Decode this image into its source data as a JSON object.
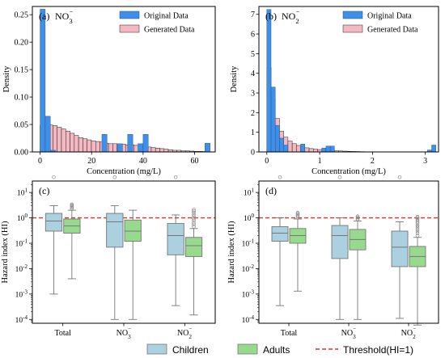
{
  "chart_data": [
    {
      "type": "bar",
      "panel": "(a)",
      "title": "NO3⁻",
      "xlabel": "Concentration (mg/L)",
      "ylabel": "Density",
      "xlim": [
        -3,
        68
      ],
      "ylim": [
        0,
        0.265
      ],
      "xticks": [
        0,
        20,
        40,
        60
      ],
      "yticks": [
        0.0,
        0.05,
        0.1,
        0.15,
        0.2,
        0.25
      ],
      "legend": {
        "placement": "top-right",
        "original": "Original Data",
        "generated": "Generated Data"
      },
      "original": {
        "color": "#3f8fe6",
        "bin_width": 2,
        "bins": [
          [
            0,
            0.26
          ],
          [
            2,
            0.065
          ],
          [
            4,
            0.003
          ],
          [
            24,
            0.032
          ],
          [
            30,
            0.015
          ],
          [
            34,
            0.032
          ],
          [
            38,
            0.015
          ],
          [
            40,
            0.032
          ],
          [
            64,
            0.016
          ]
        ]
      },
      "generated": {
        "color": "#f4b8c3",
        "bin_width": 1.66,
        "bins": [
          [
            0,
            0.049
          ],
          [
            1.66,
            0.05
          ],
          [
            3.32,
            0.049
          ],
          [
            4.98,
            0.048
          ],
          [
            6.64,
            0.045
          ],
          [
            8.3,
            0.042
          ],
          [
            9.96,
            0.038
          ],
          [
            11.62,
            0.034
          ],
          [
            13.28,
            0.03
          ],
          [
            14.94,
            0.026
          ],
          [
            16.6,
            0.024
          ],
          [
            18.26,
            0.022
          ],
          [
            19.92,
            0.02
          ],
          [
            21.58,
            0.019
          ],
          [
            23.24,
            0.018
          ],
          [
            24.9,
            0.016
          ],
          [
            26.56,
            0.015
          ],
          [
            28.22,
            0.015
          ],
          [
            29.88,
            0.014
          ],
          [
            31.54,
            0.014
          ],
          [
            33.2,
            0.013
          ],
          [
            34.86,
            0.013
          ],
          [
            36.52,
            0.012
          ],
          [
            38.18,
            0.011
          ],
          [
            39.84,
            0.01
          ],
          [
            41.5,
            0.009
          ],
          [
            43.16,
            0.008
          ],
          [
            44.82,
            0.007
          ],
          [
            46.48,
            0.006
          ],
          [
            48.14,
            0.005
          ],
          [
            49.8,
            0.004
          ],
          [
            51.46,
            0.003
          ],
          [
            53.12,
            0.003
          ],
          [
            54.78,
            0.002
          ],
          [
            56.44,
            0.002
          ],
          [
            58.1,
            0.0015
          ],
          [
            59.76,
            0.001
          ],
          [
            61.42,
            0.001
          ],
          [
            63.08,
            0.0007
          ]
        ]
      }
    },
    {
      "type": "bar",
      "panel": "(b)",
      "title": "NO2⁻",
      "xlabel": "Concentration (mg/L)",
      "ylabel": "Density",
      "xlim": [
        -0.15,
        3.25
      ],
      "ylim": [
        0,
        7.4
      ],
      "xticks": [
        0,
        1,
        2,
        3
      ],
      "yticks": [
        0,
        1,
        2,
        3,
        4,
        5,
        6,
        7
      ],
      "legend": {
        "placement": "top-right",
        "original": "Original Data",
        "generated": "Generated Data"
      },
      "original": {
        "color": "#3f8fe6",
        "bin_width": 0.08,
        "bins": [
          [
            0,
            7.25
          ],
          [
            0.08,
            3.3
          ],
          [
            0.16,
            1.35
          ],
          [
            0.24,
            0.7
          ],
          [
            0.32,
            0.35
          ],
          [
            0.64,
            0.4
          ],
          [
            1.04,
            0.2
          ],
          [
            1.12,
            0.3
          ],
          [
            1.2,
            0.3
          ],
          [
            3.04,
            0.1
          ],
          [
            3.12,
            0.35
          ]
        ]
      },
      "generated": {
        "color": "#f4b8c3",
        "bin_width": 0.08,
        "bins": [
          [
            0,
            4.3
          ],
          [
            0.08,
            2.7
          ],
          [
            0.16,
            1.7
          ],
          [
            0.24,
            1.05
          ],
          [
            0.32,
            0.75
          ],
          [
            0.4,
            0.55
          ],
          [
            0.48,
            0.42
          ],
          [
            0.56,
            0.33
          ],
          [
            0.64,
            0.26
          ],
          [
            0.72,
            0.21
          ],
          [
            0.8,
            0.17
          ],
          [
            0.88,
            0.14
          ],
          [
            0.96,
            0.12
          ],
          [
            1.04,
            0.1
          ],
          [
            1.12,
            0.09
          ],
          [
            1.2,
            0.07
          ],
          [
            1.28,
            0.06
          ],
          [
            1.36,
            0.05
          ],
          [
            1.44,
            0.04
          ],
          [
            1.52,
            0.03
          ],
          [
            1.6,
            0.025
          ],
          [
            1.68,
            0.02
          ],
          [
            1.76,
            0.015
          ],
          [
            1.84,
            0.01
          ],
          [
            1.92,
            0.01
          ],
          [
            2.0,
            0.008
          ],
          [
            2.08,
            0.006
          ]
        ]
      }
    },
    {
      "type": "box",
      "panel": "(c)",
      "ylabel": "Hazard index (HI)",
      "yscale": "log",
      "ylim_log10": [
        -4.15,
        1.45
      ],
      "yticks_log10": [
        -4,
        -3,
        -2,
        -1,
        0,
        1
      ],
      "categories": [
        "Total",
        "NO3⁻",
        "NO2⁻"
      ],
      "threshold": 1,
      "groups": [
        {
          "children": {
            "whislo": 0.001,
            "q1": 0.3,
            "med": 0.75,
            "q3": 1.5,
            "whishi": 3.0,
            "fliers": [
              40
            ]
          },
          "adults": {
            "whislo": 0.004,
            "q1": 0.25,
            "med": 0.48,
            "q3": 0.9,
            "whishi": 2.0,
            "fliers": [
              2.2,
              2.5,
              2.8,
              3.1,
              3.4
            ]
          }
        },
        {
          "children": {
            "whislo": 0.0001,
            "q1": 0.07,
            "med": 0.7,
            "q3": 1.5,
            "whishi": 3.0,
            "fliers": [
              40
            ]
          },
          "adults": {
            "whislo": 0.0001,
            "q1": 0.12,
            "med": 0.3,
            "q3": 0.82,
            "whishi": 2.0,
            "fliers": []
          }
        },
        {
          "children": {
            "whislo": 0.00035,
            "q1": 0.035,
            "med": 0.2,
            "q3": 0.6,
            "whishi": 1.3,
            "fliers": [
              40
            ]
          },
          "adults": {
            "whislo": 0.00015,
            "q1": 0.03,
            "med": 0.08,
            "q3": 0.17,
            "whishi": 0.38,
            "fliers": [
              0.45,
              0.55,
              0.65,
              0.8,
              0.95,
              1.15,
              1.35,
              1.6,
              1.85,
              2.1
            ]
          }
        }
      ]
    },
    {
      "type": "box",
      "panel": "(d)",
      "ylabel": "Hazard index (HI)",
      "yscale": "log",
      "ylim_log10": [
        -4.15,
        1.45
      ],
      "yticks_log10": [
        -4,
        -3,
        -2,
        -1,
        0,
        1
      ],
      "categories": [
        "Total",
        "NO3⁻",
        "NO2⁻"
      ],
      "threshold": 1,
      "groups": [
        {
          "children": {
            "whislo": 0.00035,
            "q1": 0.12,
            "med": 0.25,
            "q3": 0.45,
            "whishi": 1.0,
            "fliers": [
              40
            ]
          },
          "adults": {
            "whislo": 0.0013,
            "q1": 0.1,
            "med": 0.2,
            "q3": 0.38,
            "whishi": 0.9,
            "fliers": [
              1.0,
              1.15,
              1.3,
              1.45,
              1.6
            ]
          }
        },
        {
          "children": {
            "whislo": 0.0001,
            "q1": 0.025,
            "med": 0.2,
            "q3": 0.5,
            "whishi": 1.0,
            "fliers": [
              40
            ]
          },
          "adults": {
            "whislo": 0.0001,
            "q1": 0.055,
            "med": 0.14,
            "q3": 0.35,
            "whishi": 0.75,
            "fliers": [
              0.85,
              0.95,
              1.05,
              1.15
            ]
          }
        },
        {
          "children": {
            "whislo": 0.00011,
            "q1": 0.012,
            "med": 0.07,
            "q3": 0.3,
            "whishi": 0.7,
            "fliers": [
              40
            ]
          },
          "adults": {
            "whislo": 6e-05,
            "q1": 0.012,
            "med": 0.03,
            "q3": 0.075,
            "whishi": 0.17,
            "fliers": [
              0.2,
              0.25,
              0.3,
              0.36,
              0.43,
              0.5,
              0.6,
              0.7,
              0.8,
              0.9,
              1.0,
              1.1
            ]
          }
        }
      ]
    }
  ],
  "box_colors": {
    "children": "#abd0e0",
    "adults": "#97da8d",
    "threshold": "#e03030",
    "edge": "#777777"
  },
  "legend": {
    "children": "Children",
    "adults": "Adults",
    "threshold": "Threshold(HI=1)"
  }
}
